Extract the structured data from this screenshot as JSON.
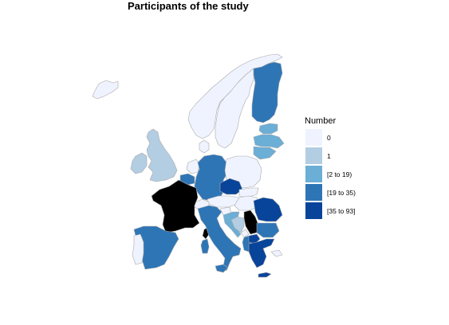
{
  "title": "Participants of the study",
  "legend": {
    "title": "Number",
    "classes": [
      {
        "label": "0",
        "color": "#eff3ff"
      },
      {
        "label": "1",
        "color": "#b3cde3"
      },
      {
        "label": "[2 to 19)",
        "color": "#6baed6"
      },
      {
        "label": "[19 to 35)",
        "color": "#2e75b6"
      },
      {
        "label": "[35 to 93]",
        "color": "#08449a"
      }
    ]
  },
  "colors": {
    "border": "#a9a9a9",
    "missing": "#000000",
    "background": "#ffffff"
  },
  "regions": [
    {
      "name": "Iceland",
      "class": "0"
    },
    {
      "name": "Norway",
      "class": "0"
    },
    {
      "name": "Sweden",
      "class": "0"
    },
    {
      "name": "Finland",
      "class": "[19 to 35)"
    },
    {
      "name": "Estonia",
      "class": "[2 to 19)"
    },
    {
      "name": "Latvia",
      "class": "[2 to 19)"
    },
    {
      "name": "Lithuania",
      "class": "[2 to 19)"
    },
    {
      "name": "Ireland",
      "class": "1"
    },
    {
      "name": "United Kingdom",
      "class": "1"
    },
    {
      "name": "Denmark",
      "class": "0"
    },
    {
      "name": "Netherlands",
      "class": "0"
    },
    {
      "name": "Belgium",
      "class": "[19 to 35)"
    },
    {
      "name": "Luxembourg",
      "class": "0"
    },
    {
      "name": "France",
      "class": "missing"
    },
    {
      "name": "Germany",
      "class": "[19 to 35)"
    },
    {
      "name": "Poland",
      "class": "0"
    },
    {
      "name": "Czechia",
      "class": "[35 to 93]"
    },
    {
      "name": "Slovakia",
      "class": "0"
    },
    {
      "name": "Austria",
      "class": "0"
    },
    {
      "name": "Switzerland",
      "class": "0"
    },
    {
      "name": "Hungary",
      "class": "0"
    },
    {
      "name": "Slovenia",
      "class": "0"
    },
    {
      "name": "Croatia",
      "class": "[2 to 19)"
    },
    {
      "name": "Bosnia and Herzegovina",
      "class": "1"
    },
    {
      "name": "Serbia",
      "class": "missing"
    },
    {
      "name": "Montenegro",
      "class": "0"
    },
    {
      "name": "Albania",
      "class": "[19 to 35)"
    },
    {
      "name": "North Macedonia",
      "class": "[35 to 93]"
    },
    {
      "name": "Romania",
      "class": "[35 to 93]"
    },
    {
      "name": "Bulgaria",
      "class": "[19 to 35)"
    },
    {
      "name": "Greece",
      "class": "[35 to 93]"
    },
    {
      "name": "Italy",
      "class": "[19 to 35)"
    },
    {
      "name": "Spain",
      "class": "[19 to 35)"
    },
    {
      "name": "Portugal",
      "class": "0"
    },
    {
      "name": "Corsica",
      "class": "missing"
    },
    {
      "name": "Sardinia",
      "class": "[19 to 35)"
    },
    {
      "name": "Sicily",
      "class": "[19 to 35)"
    },
    {
      "name": "Crete",
      "class": "[35 to 93]"
    },
    {
      "name": "Cyprus",
      "class": "0"
    }
  ]
}
